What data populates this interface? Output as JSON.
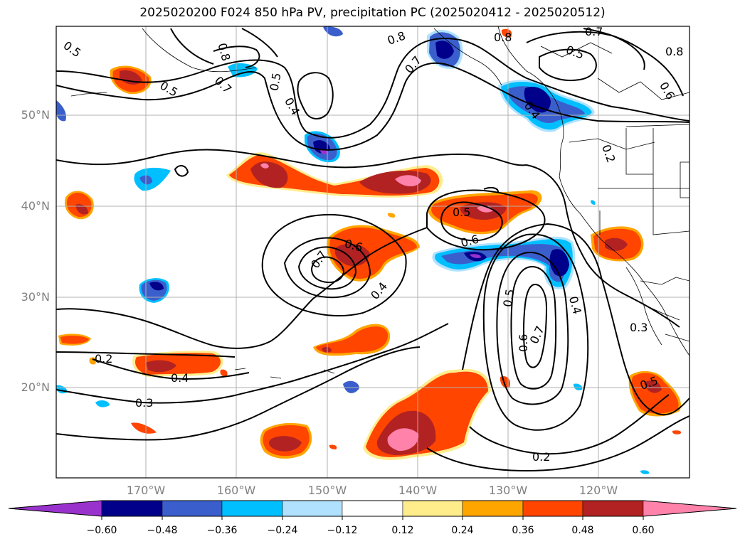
{
  "title": "2025020200 F024 850 hPa PV, precipitation PC (2025020412 - 2025020512)",
  "map": {
    "lat_labels": [
      "50°N",
      "40°N",
      "30°N",
      "20°N"
    ],
    "lon_labels": [
      "170°W",
      "160°W",
      "150°W",
      "140°W",
      "130°W",
      "120°W"
    ],
    "extent": {
      "lon_min": -180,
      "lon_max": -110,
      "lat_min": 10,
      "lat_max": 60
    },
    "gridlines": true,
    "contour_color": "#000000"
  },
  "contour_labels": [
    "0.5",
    "0.5",
    "0.8",
    "0.7",
    "0.5",
    "0.4",
    "0.8",
    "0.7",
    "0.8",
    "0.7",
    "0.5",
    "0.8",
    "0.6",
    "0.4",
    "0.2",
    "0.5",
    "0.6",
    "0.7",
    "0.6",
    "0.4",
    "0.5",
    "0.7",
    "0.6",
    "0.4",
    "0.3",
    "0.5",
    "0.2",
    "0.4",
    "0.3",
    "0.2"
  ],
  "colorbar": {
    "tick_labels": [
      "−0.60",
      "−0.48",
      "−0.36",
      "−0.24",
      "−0.12",
      "0.12",
      "0.24",
      "0.36",
      "0.48",
      "0.60"
    ],
    "colors": [
      "#9932cc",
      "#00008b",
      "#3a5fcd",
      "#00bfff",
      "#b0e2ff",
      "#ffffff",
      "#ffec8b",
      "#ffa500",
      "#ff4500",
      "#b22222",
      "#ff82ab"
    ],
    "extend": "both"
  },
  "fill_colors": {
    "pos_1": "#ffec8b",
    "pos_2": "#ffa500",
    "pos_3": "#ff4500",
    "pos_4": "#b22222",
    "pos_5": "#ff82ab",
    "neg_1": "#b0e2ff",
    "neg_2": "#00bfff",
    "neg_3": "#3a5fcd",
    "neg_4": "#00008b",
    "neg_5": "#9932cc"
  }
}
